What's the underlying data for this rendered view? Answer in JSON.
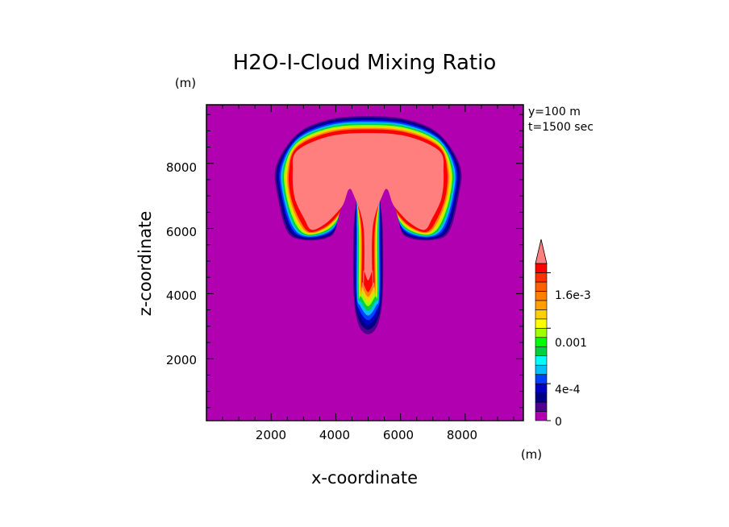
{
  "chart_data": {
    "type": "heatmap",
    "title": "H2O-I-Cloud Mixing Ratio",
    "xlabel": "x-coordinate",
    "ylabel": "z-coordinate",
    "x_unit": "(m)",
    "y_unit": "(m)",
    "annotations": [
      "y=100 m",
      "t=1500 sec"
    ],
    "xlim": [
      0,
      9800
    ],
    "ylim": [
      100,
      9800
    ],
    "x_ticks": [
      2000,
      4000,
      6000,
      8000
    ],
    "y_ticks": [
      2000,
      4000,
      6000,
      8000
    ],
    "x_tick_labels": [
      "2000",
      "4000",
      "6000",
      "8000"
    ],
    "y_tick_labels": [
      "2000",
      "4000",
      "6000",
      "8000"
    ],
    "x_minor_step": 500,
    "y_minor_step": 500,
    "colorbar": {
      "levels": [
        0,
        0.0001,
        0.0002,
        0.0003,
        0.0004,
        0.0005,
        0.0006,
        0.0007,
        0.0008,
        0.0009,
        0.001,
        0.0011,
        0.0012,
        0.0013,
        0.0014,
        0.0015,
        0.0016,
        0.0017,
        0.0018,
        0.0019
      ],
      "colors": [
        "#b000b0",
        "#500090",
        "#000080",
        "#0000c0",
        "#0040ff",
        "#00c0ff",
        "#00ffff",
        "#00d040",
        "#00ff00",
        "#a0ff00",
        "#ffff00",
        "#ffd000",
        "#ffa000",
        "#ff8000",
        "#ff6000",
        "#ff3000",
        "#ff0000",
        "#ff7f7f"
      ],
      "tick_values": [
        0,
        0.0004,
        0.001,
        0.0016
      ],
      "tick_labels": [
        "0",
        "4e-4",
        "0.001",
        "1.6e-3"
      ],
      "extend": "max"
    },
    "field_description_bands": [
      {
        "level": 5e-05,
        "color": "#500090"
      },
      {
        "level": 0.0001,
        "color": "#000080"
      },
      {
        "level": 0.0002,
        "color": "#0000c0"
      },
      {
        "level": 0.0003,
        "color": "#0040ff"
      },
      {
        "level": 0.0005,
        "color": "#00c0ff"
      },
      {
        "level": 0.0007,
        "color": "#00d040"
      },
      {
        "level": 0.0009,
        "color": "#a0ff00"
      },
      {
        "level": 0.0011,
        "color": "#ffd000"
      },
      {
        "level": 0.0013,
        "color": "#ff8000"
      },
      {
        "level": 0.0016,
        "color": "#ff0000"
      },
      {
        "level": 0.0019,
        "color": "#ff7f7f"
      }
    ]
  }
}
